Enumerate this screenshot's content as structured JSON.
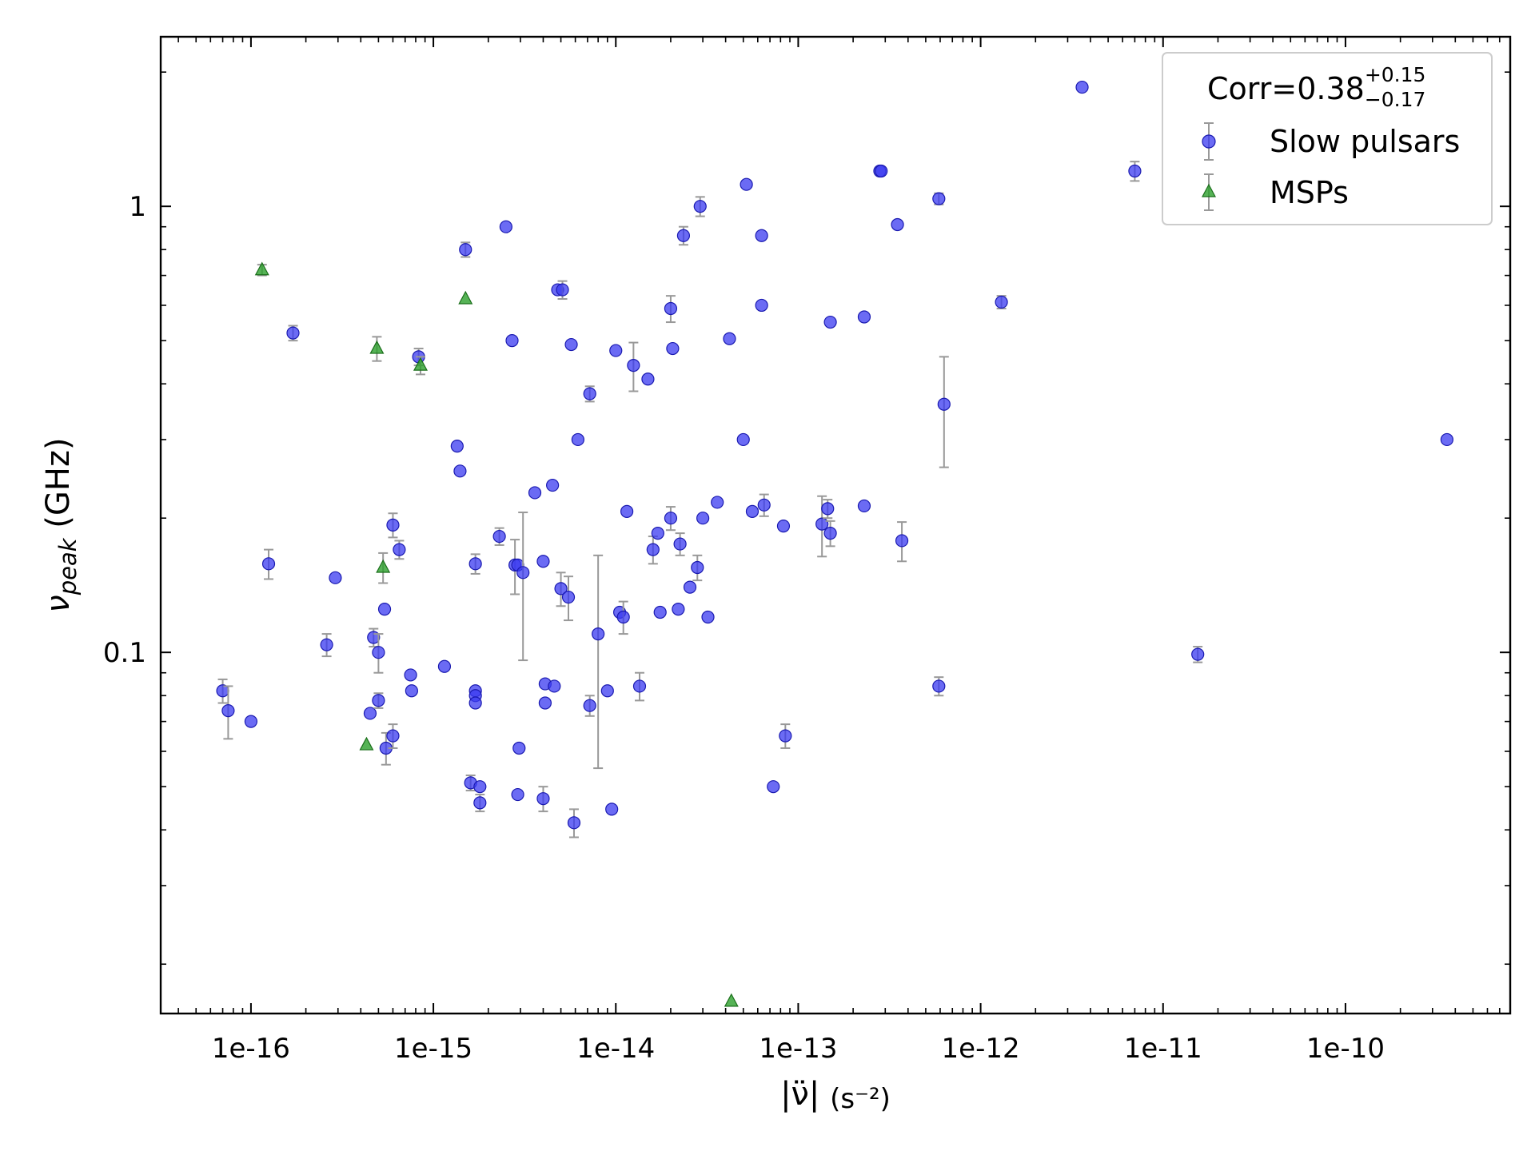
{
  "chart_data": {
    "type": "scatter",
    "title": "",
    "xlabel": "|ν̈| (s⁻²)",
    "ylabel": "νpeak (GHz)",
    "xlabel_main": "|ν̈|",
    "xlabel_unit": "(s⁻²)",
    "ylabel_main": "ν",
    "ylabel_sub": "peak",
    "ylabel_unit": "(GHz)",
    "xscale": "log",
    "yscale": "log",
    "xlim": [
      3.2e-17,
      8e-10
    ],
    "ylim": [
      0.0155,
      2.4
    ],
    "xticks": [
      {
        "value": 1e-16,
        "label": "1e-16"
      },
      {
        "value": 1e-15,
        "label": "1e-15"
      },
      {
        "value": 1e-14,
        "label": "1e-14"
      },
      {
        "value": 1e-13,
        "label": "1e-13"
      },
      {
        "value": 1e-12,
        "label": "1e-12"
      },
      {
        "value": 1e-11,
        "label": "1e-11"
      },
      {
        "value": 1e-10,
        "label": "1e-10"
      }
    ],
    "yticks": [
      {
        "value": 0.1,
        "label": "0.1"
      },
      {
        "value": 1,
        "label": "1"
      }
    ],
    "grid": false,
    "legend": {
      "position": "top-right",
      "title_main": "Corr=0.38",
      "title_sup": "+0.15",
      "title_sub": "−0.17",
      "entries": [
        "Slow pulsars",
        "MSPs"
      ]
    },
    "colors": {
      "slow": "#3a3af0",
      "slow_edge": "#1a1ab0",
      "msp": "#2ca02c",
      "msp_edge": "#1a6e1a",
      "errorbar": "#999999"
    },
    "series": [
      {
        "name": "Slow pulsars",
        "marker": "circle",
        "points": [
          {
            "x": 7e-17,
            "y": 0.082,
            "yerr": 0.005
          },
          {
            "x": 7.5e-17,
            "y": 0.074,
            "yerr": 0.01
          },
          {
            "x": 1e-16,
            "y": 0.07
          },
          {
            "x": 1.25e-16,
            "y": 0.158,
            "yerr": 0.012
          },
          {
            "x": 1.7e-16,
            "y": 0.52,
            "yerr": 0.02
          },
          {
            "x": 2.6e-16,
            "y": 0.104,
            "yerr": 0.006
          },
          {
            "x": 2.9e-16,
            "y": 0.147
          },
          {
            "x": 4.5e-16,
            "y": 0.073
          },
          {
            "x": 4.7e-16,
            "y": 0.108,
            "yerr": 0.005
          },
          {
            "x": 5e-16,
            "y": 0.078,
            "yerr": 0.003
          },
          {
            "x": 5e-16,
            "y": 0.1,
            "yerr": 0.01
          },
          {
            "x": 5.4e-16,
            "y": 0.125
          },
          {
            "x": 5.5e-16,
            "y": 0.061,
            "yerr": 0.005
          },
          {
            "x": 6e-16,
            "y": 0.193,
            "yerr": 0.012
          },
          {
            "x": 6e-16,
            "y": 0.065,
            "yerr": 0.004
          },
          {
            "x": 6.5e-16,
            "y": 0.17,
            "yerr": 0.008
          },
          {
            "x": 7.5e-16,
            "y": 0.089
          },
          {
            "x": 7.6e-16,
            "y": 0.082
          },
          {
            "x": 8.3e-16,
            "y": 0.46,
            "yerr": 0.02
          },
          {
            "x": 1.15e-15,
            "y": 0.093
          },
          {
            "x": 1.35e-15,
            "y": 0.29
          },
          {
            "x": 1.4e-15,
            "y": 0.255
          },
          {
            "x": 1.5e-15,
            "y": 0.8,
            "yerr": 0.03
          },
          {
            "x": 1.6e-15,
            "y": 0.051,
            "yerr": 0.002
          },
          {
            "x": 1.7e-15,
            "y": 0.158,
            "yerr": 0.008
          },
          {
            "x": 1.7e-15,
            "y": 0.082
          },
          {
            "x": 1.7e-15,
            "y": 0.08
          },
          {
            "x": 1.7e-15,
            "y": 0.077
          },
          {
            "x": 1.8e-15,
            "y": 0.046,
            "yerr": 0.002
          },
          {
            "x": 1.8e-15,
            "y": 0.05
          },
          {
            "x": 2.3e-15,
            "y": 0.182,
            "yerr": 0.008
          },
          {
            "x": 2.5e-15,
            "y": 0.9
          },
          {
            "x": 2.7e-15,
            "y": 0.5
          },
          {
            "x": 2.8e-15,
            "y": 0.157,
            "yerr": 0.022
          },
          {
            "x": 2.9e-15,
            "y": 0.157
          },
          {
            "x": 2.95e-15,
            "y": 0.061
          },
          {
            "x": 2.9e-15,
            "y": 0.048
          },
          {
            "x": 3.1e-15,
            "y": 0.151,
            "yerr": 0.055
          },
          {
            "x": 3.6e-15,
            "y": 0.228
          },
          {
            "x": 4e-15,
            "y": 0.16
          },
          {
            "x": 4.1e-15,
            "y": 0.085
          },
          {
            "x": 4.1e-15,
            "y": 0.077
          },
          {
            "x": 4e-15,
            "y": 0.047,
            "yerr": 0.003
          },
          {
            "x": 4.5e-15,
            "y": 0.237
          },
          {
            "x": 4.6e-15,
            "y": 0.084
          },
          {
            "x": 4.8e-15,
            "y": 0.65
          },
          {
            "x": 5.1e-15,
            "y": 0.65,
            "yerr": 0.03
          },
          {
            "x": 5e-15,
            "y": 0.139,
            "yerr": 0.012
          },
          {
            "x": 5.5e-15,
            "y": 0.133,
            "yerr": 0.015
          },
          {
            "x": 5.7e-15,
            "y": 0.49
          },
          {
            "x": 5.9e-15,
            "y": 0.0415,
            "yerr": 0.003
          },
          {
            "x": 6.2e-15,
            "y": 0.3
          },
          {
            "x": 7.2e-15,
            "y": 0.38,
            "yerr": 0.015
          },
          {
            "x": 7.2e-15,
            "y": 0.076,
            "yerr": 0.004
          },
          {
            "x": 8e-15,
            "y": 0.11,
            "yerr": 0.055
          },
          {
            "x": 9e-15,
            "y": 0.082
          },
          {
            "x": 9.5e-15,
            "y": 0.0445
          },
          {
            "x": 1e-14,
            "y": 0.475
          },
          {
            "x": 1.05e-14,
            "y": 0.123
          },
          {
            "x": 1.1e-14,
            "y": 0.12,
            "yerr": 0.01
          },
          {
            "x": 1.15e-14,
            "y": 0.207
          },
          {
            "x": 1.25e-14,
            "y": 0.44,
            "yerr": 0.055
          },
          {
            "x": 1.35e-14,
            "y": 0.084,
            "yerr": 0.006
          },
          {
            "x": 1.5e-14,
            "y": 0.41
          },
          {
            "x": 1.6e-14,
            "y": 0.17,
            "yerr": 0.012
          },
          {
            "x": 1.7e-14,
            "y": 0.185
          },
          {
            "x": 1.75e-14,
            "y": 0.123
          },
          {
            "x": 2e-14,
            "y": 0.59,
            "yerr": 0.04
          },
          {
            "x": 2e-14,
            "y": 0.2,
            "yerr": 0.012
          },
          {
            "x": 2.05e-14,
            "y": 0.48
          },
          {
            "x": 2.2e-14,
            "y": 0.125
          },
          {
            "x": 2.25e-14,
            "y": 0.175,
            "yerr": 0.01
          },
          {
            "x": 2.35e-14,
            "y": 0.86,
            "yerr": 0.04
          },
          {
            "x": 2.55e-14,
            "y": 0.14
          },
          {
            "x": 2.8e-14,
            "y": 0.155,
            "yerr": 0.01
          },
          {
            "x": 2.9e-14,
            "y": 1.0,
            "yerr": 0.05
          },
          {
            "x": 3e-14,
            "y": 0.2
          },
          {
            "x": 3.2e-14,
            "y": 0.12
          },
          {
            "x": 3.6e-14,
            "y": 0.217
          },
          {
            "x": 4.2e-14,
            "y": 0.505
          },
          {
            "x": 5e-14,
            "y": 0.3
          },
          {
            "x": 5.2e-14,
            "y": 1.12
          },
          {
            "x": 5.6e-14,
            "y": 0.207
          },
          {
            "x": 6.3e-14,
            "y": 0.86
          },
          {
            "x": 6.3e-14,
            "y": 0.6
          },
          {
            "x": 6.5e-14,
            "y": 0.214,
            "yerr": 0.012
          },
          {
            "x": 7.3e-14,
            "y": 0.05
          },
          {
            "x": 8.3e-14,
            "y": 0.192
          },
          {
            "x": 8.5e-14,
            "y": 0.065,
            "yerr": 0.004
          },
          {
            "x": 1.35e-13,
            "y": 0.194,
            "yerr": 0.03
          },
          {
            "x": 1.45e-13,
            "y": 0.21,
            "yerr": 0.01
          },
          {
            "x": 1.5e-13,
            "y": 0.185,
            "yerr": 0.012
          },
          {
            "x": 1.5e-13,
            "y": 0.55
          },
          {
            "x": 2.3e-13,
            "y": 0.213
          },
          {
            "x": 2.3e-13,
            "y": 0.565
          },
          {
            "x": 2.8e-13,
            "y": 1.2
          },
          {
            "x": 2.85e-13,
            "y": 1.2
          },
          {
            "x": 3.5e-13,
            "y": 0.91
          },
          {
            "x": 3.7e-13,
            "y": 0.178,
            "yerr": 0.018
          },
          {
            "x": 5.9e-13,
            "y": 1.04,
            "yerr": 0.03
          },
          {
            "x": 5.9e-13,
            "y": 0.084,
            "yerr": 0.004
          },
          {
            "x": 6.3e-13,
            "y": 0.36,
            "yerr": 0.1
          },
          {
            "x": 1.3e-12,
            "y": 0.61,
            "yerr": 0.02
          },
          {
            "x": 3.6e-12,
            "y": 1.85
          },
          {
            "x": 7e-12,
            "y": 1.2,
            "yerr": 0.06
          },
          {
            "x": 1.55e-11,
            "y": 0.099,
            "yerr": 0.004
          },
          {
            "x": 3.6e-10,
            "y": 0.3
          }
        ]
      },
      {
        "name": "MSPs",
        "marker": "triangle",
        "points": [
          {
            "x": 1.15e-16,
            "y": 0.72,
            "yerr": 0.02
          },
          {
            "x": 4.3e-16,
            "y": 0.062
          },
          {
            "x": 4.9e-16,
            "y": 0.48,
            "yerr": 0.03
          },
          {
            "x": 5.3e-16,
            "y": 0.155,
            "yerr": 0.012
          },
          {
            "x": 8.5e-16,
            "y": 0.44,
            "yerr": 0.02
          },
          {
            "x": 1.5e-15,
            "y": 0.62
          },
          {
            "x": 4.3e-14,
            "y": 0.0165
          }
        ]
      }
    ]
  }
}
